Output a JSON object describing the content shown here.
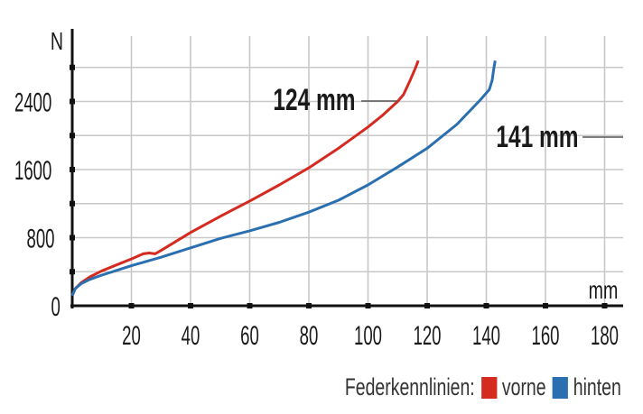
{
  "chart_data": {
    "type": "line",
    "xlabel": "mm",
    "ylabel": "N",
    "xlim": [
      0,
      182
    ],
    "ylim": [
      0,
      3000
    ],
    "x_ticks": [
      20,
      40,
      60,
      80,
      100,
      120,
      140,
      160,
      180
    ],
    "y_ticks": [
      0,
      800,
      1600,
      2400
    ],
    "grid": true,
    "series": [
      {
        "name": "vorne",
        "color": "#d42a20",
        "callout": "124 mm",
        "x": [
          0,
          1,
          3,
          6,
          10,
          15,
          20,
          24,
          26,
          28,
          30,
          40,
          50,
          60,
          70,
          80,
          90,
          100,
          105,
          110,
          112,
          114,
          116,
          117
        ],
        "y": [
          120,
          200,
          270,
          340,
          410,
          480,
          550,
          610,
          620,
          610,
          650,
          860,
          1050,
          1230,
          1420,
          1620,
          1850,
          2100,
          2240,
          2400,
          2480,
          2630,
          2790,
          2880
        ]
      },
      {
        "name": "hinten",
        "color": "#2a6fb0",
        "callout": "141 mm",
        "x": [
          0,
          1,
          3,
          6,
          10,
          20,
          30,
          40,
          50,
          60,
          70,
          80,
          90,
          100,
          110,
          120,
          130,
          135,
          138,
          141,
          142,
          142.5,
          143
        ],
        "y": [
          120,
          200,
          260,
          310,
          360,
          470,
          570,
          680,
          790,
          880,
          980,
          1100,
          1240,
          1420,
          1630,
          1850,
          2130,
          2310,
          2420,
          2540,
          2650,
          2780,
          2880
        ]
      }
    ]
  },
  "legend": {
    "title": "Federkennlinien:",
    "items": [
      {
        "label": "vorne",
        "color": "#d42a20"
      },
      {
        "label": "hinten",
        "color": "#2a6fb0"
      }
    ]
  }
}
